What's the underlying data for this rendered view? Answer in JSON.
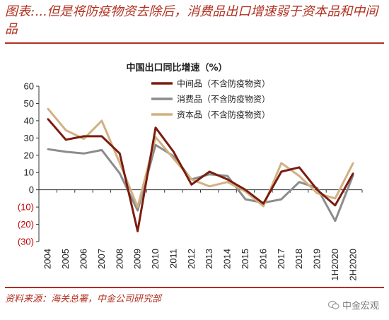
{
  "header": {
    "title": "图表:...但是将防疫物资去除后，消费品出口增速弱于资本品和中间品"
  },
  "footer": {
    "source": "资料来源：海关总署，中金公司研究部",
    "watermark": "中金宏观"
  },
  "colors": {
    "accent": "#b03020",
    "intermediate": "#7b1c10",
    "consumer": "#8c8c8c",
    "capital": "#d1b182",
    "negative_tick": "#c00000"
  },
  "chart_data": {
    "type": "line",
    "title": "中国出口同比增速（%）",
    "categories": [
      "2004",
      "2005",
      "2006",
      "2007",
      "2008",
      "2009",
      "2010",
      "2011",
      "2012",
      "2013",
      "2014",
      "2015",
      "2016",
      "2017",
      "2018",
      "2019",
      "1H2020",
      "2H2020"
    ],
    "ylim": [
      -30,
      60
    ],
    "yticks": [
      "60",
      "50",
      "40",
      "30",
      "20",
      "10",
      "0",
      "(10)",
      "(20)",
      "(30)"
    ],
    "grid": false,
    "legend_position": "top-right",
    "series": [
      {
        "name": "中间品（不含防疫物资）",
        "values": [
          41,
          29,
          31,
          31,
          21,
          -24,
          36,
          22,
          3,
          10.5,
          6,
          0,
          -8,
          10.5,
          13,
          0,
          -9,
          9.5
        ]
      },
      {
        "name": "消费品（不含防疫物资）",
        "values": [
          23.5,
          22,
          21,
          23,
          9.5,
          -12,
          26,
          19.5,
          6,
          9,
          8,
          -5.5,
          -7.5,
          -5.5,
          4.5,
          1,
          -18,
          8.5
        ]
      },
      {
        "name": "资本品（不含防疫物资）",
        "values": [
          47,
          34.5,
          29.5,
          40,
          15.5,
          -10,
          30.5,
          18,
          6,
          2,
          4.5,
          -1,
          -9.5,
          15.5,
          8,
          -2,
          -5,
          15.5
        ]
      }
    ]
  }
}
